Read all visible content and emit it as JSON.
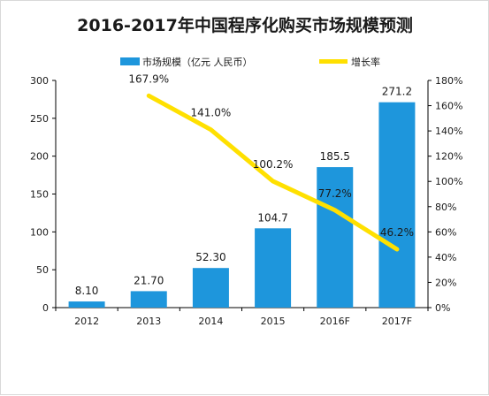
{
  "chart_data": {
    "type": "bar",
    "title": "2016-2017年中国程序化购买市场规模预测",
    "categories": [
      "2012",
      "2013",
      "2014",
      "2015",
      "2016F",
      "2017F"
    ],
    "series": [
      {
        "name": "市场规模（亿元 人民币）",
        "type": "bar",
        "axis": "left",
        "color": "#1e96dc",
        "values": [
          8.1,
          21.7,
          52.3,
          104.7,
          185.5,
          271.2
        ],
        "labels": [
          "8.10",
          "21.70",
          "52.30",
          "104.7",
          "185.5",
          "271.2"
        ]
      },
      {
        "name": "增长率",
        "type": "line",
        "axis": "right",
        "color": "#ffe000",
        "values": [
          null,
          167.9,
          141.0,
          100.2,
          77.2,
          46.2
        ],
        "labels": [
          "",
          "167.9%",
          "141.0%",
          "100.2%",
          "77.2%",
          "46.2%"
        ]
      }
    ],
    "y_left": {
      "min": 0,
      "max": 300,
      "ticks": [
        "0",
        "50",
        "100",
        "150",
        "200",
        "250",
        "300"
      ]
    },
    "y_right": {
      "min": 0,
      "max": 180,
      "unit": "%",
      "ticks": [
        "0%",
        "20%",
        "40%",
        "60%",
        "80%",
        "100%",
        "120%",
        "140%",
        "160%",
        "180%"
      ]
    },
    "grid": false,
    "legend_position": "top"
  }
}
